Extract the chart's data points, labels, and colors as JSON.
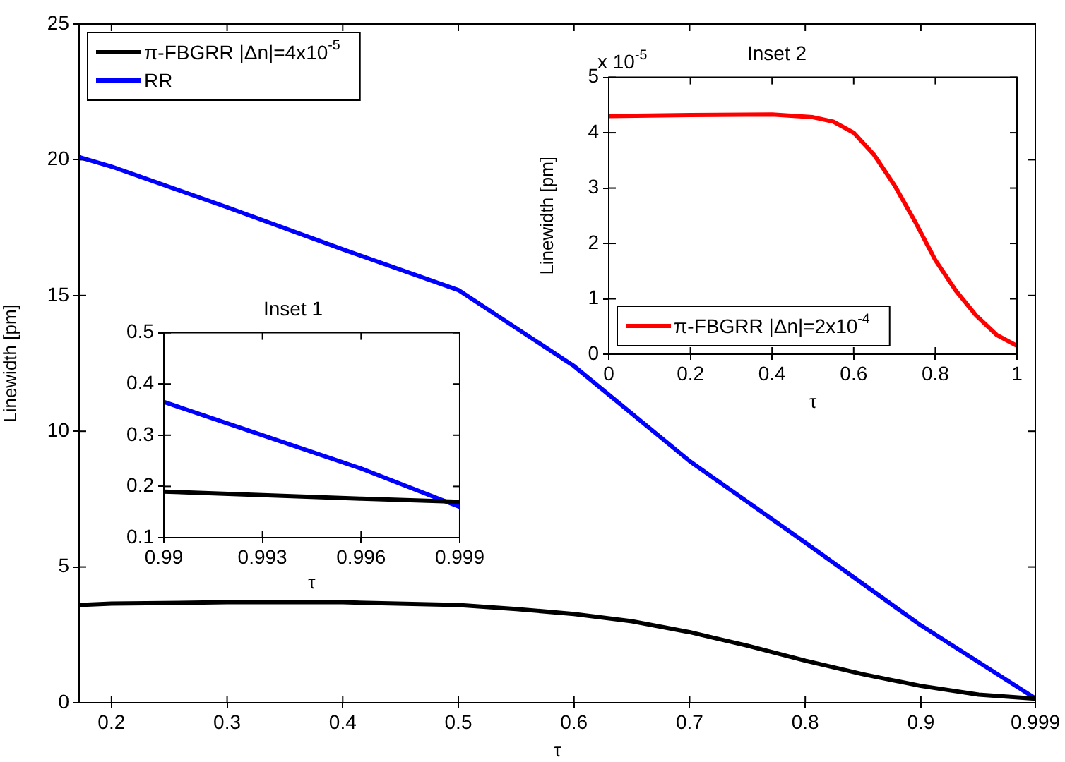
{
  "chart_data": [
    {
      "type": "line",
      "xlabel": "τ",
      "ylabel": "Linewidth [pm]",
      "xlim": [
        0.172,
        0.999
      ],
      "xticks": [
        0.2,
        0.3,
        0.4,
        0.5,
        0.6,
        0.7,
        0.8,
        0.9,
        0.999
      ],
      "ylim": [
        0,
        25
      ],
      "yticks": [
        0,
        5,
        10,
        15,
        20,
        25
      ],
      "legend": "top left",
      "line_style": "solid",
      "marker": "none",
      "series": [
        {
          "name": "π-FBGRR |Δn|=4x10$^{-5}$",
          "color": "#000000",
          "x": [
            0.172,
            0.2,
            0.3,
            0.4,
            0.5,
            0.55,
            0.6,
            0.65,
            0.7,
            0.75,
            0.8,
            0.85,
            0.9,
            0.95,
            0.999
          ],
          "values": [
            3.6,
            3.65,
            3.7,
            3.7,
            3.6,
            3.45,
            3.27,
            3.0,
            2.6,
            2.1,
            1.55,
            1.05,
            0.62,
            0.3,
            0.15
          ]
        },
        {
          "name": "RR",
          "color": "#0000ff",
          "x": [
            0.172,
            0.2,
            0.3,
            0.4,
            0.5,
            0.6,
            0.7,
            0.8,
            0.9,
            0.999
          ],
          "values": [
            20.1,
            19.75,
            18.25,
            16.7,
            15.2,
            12.4,
            8.9,
            5.9,
            2.85,
            0.16
          ]
        }
      ]
    },
    {
      "type": "line",
      "title": "Inset 1",
      "xlabel": "τ",
      "xlim": [
        0.99,
        0.999
      ],
      "xticks": [
        0.99,
        0.993,
        0.996,
        0.999
      ],
      "ylim": [
        0.1,
        0.5
      ],
      "yticks": [
        0.1,
        0.2,
        0.3,
        0.4,
        0.5
      ],
      "line_style": "solid",
      "marker": "none",
      "series": [
        {
          "color": "#000000",
          "x": [
            0.99,
            0.993,
            0.996,
            0.999
          ],
          "values": [
            0.19,
            0.183,
            0.176,
            0.17
          ]
        },
        {
          "color": "#0000ff",
          "x": [
            0.99,
            0.993,
            0.996,
            0.999
          ],
          "values": [
            0.365,
            0.3,
            0.235,
            0.16
          ]
        }
      ]
    },
    {
      "type": "line",
      "title": "Inset 2",
      "xlabel": "τ",
      "ylabel": "Linewidth [pm]",
      "annotations": [
        "x 10$^{-5}$"
      ],
      "xlim": [
        0,
        1
      ],
      "xticks": [
        0,
        0.2,
        0.4,
        0.6,
        0.8,
        1
      ],
      "ylim": [
        0,
        5
      ],
      "yticks": [
        0,
        1,
        2,
        3,
        4,
        5
      ],
      "legend": "bottom left",
      "line_style": "solid",
      "marker": "none",
      "series": [
        {
          "name": "π-FBGRR |Δn|=2x10$^{-4}$",
          "color": "#ff0000",
          "x": [
            0,
            0.2,
            0.4,
            0.5,
            0.55,
            0.6,
            0.65,
            0.7,
            0.75,
            0.8,
            0.85,
            0.9,
            0.95,
            1
          ],
          "values": [
            4.3,
            4.32,
            4.33,
            4.28,
            4.2,
            4.0,
            3.6,
            3.05,
            2.4,
            1.7,
            1.15,
            0.7,
            0.35,
            0.15
          ]
        }
      ]
    }
  ]
}
